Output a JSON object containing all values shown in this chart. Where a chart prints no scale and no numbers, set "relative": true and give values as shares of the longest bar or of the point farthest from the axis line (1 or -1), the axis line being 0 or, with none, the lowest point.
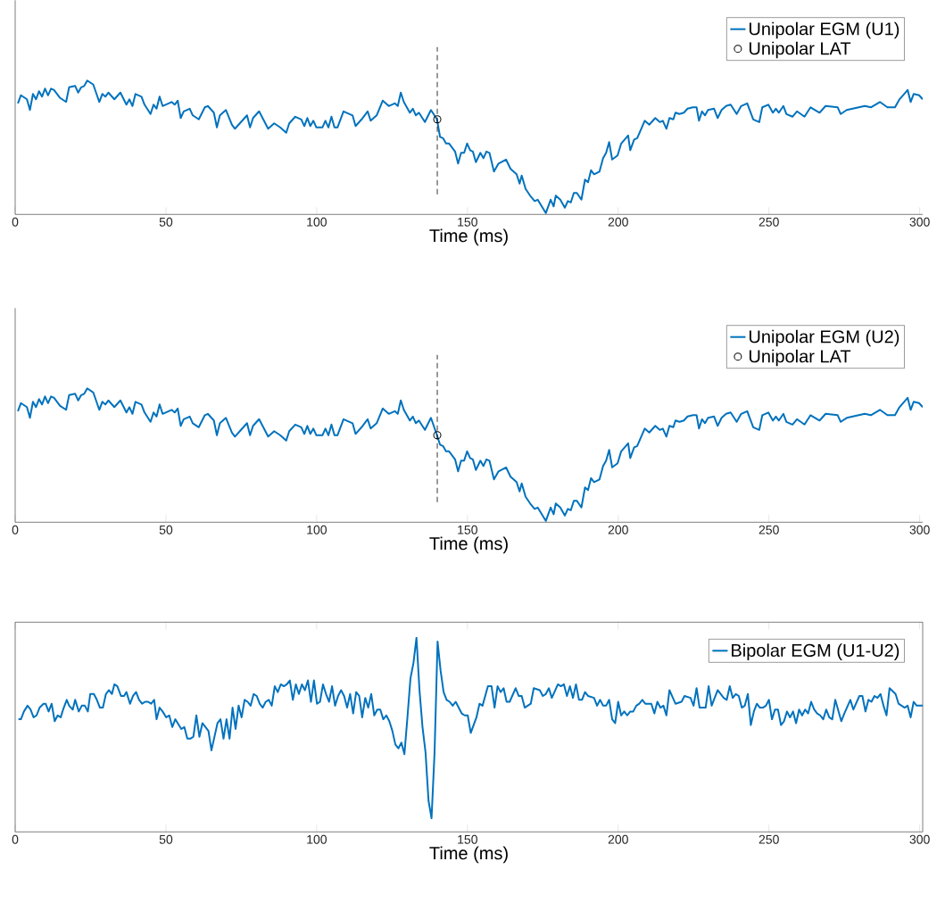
{
  "chart_data": [
    {
      "type": "line",
      "xlabel": "Time (ms)",
      "relative": true,
      "xlim": [
        0,
        301
      ],
      "xticks": [
        0,
        50,
        100,
        150,
        200,
        250,
        300
      ],
      "legend": "top right",
      "ref_lines": [
        {
          "axis": "x",
          "value": 140,
          "color": "#000000",
          "line_style": "dashed"
        }
      ],
      "series": [
        {
          "name": "Unipolar EGM (U1)",
          "color": "#0072bd",
          "x": [
            0.9,
            1.9,
            3.9,
            4.9,
            5.9,
            6.9,
            7.9,
            8.9,
            9.9,
            10.9,
            11.9,
            12.9,
            14.9,
            16.9,
            17.9,
            19.9,
            20.9,
            21.9,
            22.9,
            23.9,
            25.9,
            27.9,
            28.9,
            29.9,
            30.9,
            32.9,
            34.9,
            36.9,
            37.9,
            38.9,
            39.9,
            41.9,
            42.9,
            44.9,
            45.9,
            46.9,
            47.9,
            48.9,
            50.9,
            51.9,
            52.9,
            53.9,
            54.9,
            55.9,
            57.9,
            58.9,
            60.9,
            62.9,
            63.9,
            65.9,
            66.9,
            67.9,
            69.9,
            71.9,
            72.9,
            74.9,
            76.9,
            77.9,
            78.9,
            80.9,
            83.9,
            85.9,
            87.9,
            89.9,
            90.9,
            92.9,
            94.9,
            95.9,
            96.9,
            97.9,
            98.9,
            99.9,
            101.9,
            102.9,
            103.9,
            104.9,
            105.9,
            106.9,
            108.9,
            111.9,
            112.9,
            114.9,
            116.9,
            117.9,
            119.9,
            121.9,
            123.9,
            125.9,
            126.9,
            127.9,
            128.9,
            130.9,
            131.9,
            132.9,
            133.9,
            135.9,
            137.9,
            139.9,
            140.9,
            141.9,
            142.9,
            143.9,
            145.9,
            146.9,
            147.9,
            148.9,
            149.9,
            150.9,
            151.8,
            152.8,
            154.3,
            155.3,
            156.3,
            157.3,
            158.8,
            160.3,
            162.8,
            164.3,
            166.3,
            167.3,
            168.0,
            169.3,
            170.8,
            172.3,
            173.3,
            176.0,
            177.6,
            178.6,
            179.3,
            180.8,
            182.3,
            183.3,
            184.3,
            185.3,
            186.3,
            187.8,
            189.0,
            190.0,
            191.0,
            192.0,
            193.8,
            195.0,
            196.0,
            197.0,
            198.0,
            199.8,
            201.0,
            203.3,
            204.0,
            205.3,
            206.3,
            208.8,
            210.3,
            212.3,
            213.8,
            214.8,
            216.0,
            217.0,
            218.3,
            219.0,
            220.3,
            221.8,
            223.0,
            224.8,
            226.0,
            226.8,
            227.8,
            228.8,
            229.8,
            231.8,
            233.0,
            234.3,
            235.8,
            237.3,
            239.3,
            240.8,
            242.8,
            244.8,
            246.8,
            247.8,
            249.8,
            251.3,
            252.3,
            253.3,
            254.8,
            255.8,
            257.8,
            259.3,
            261.8,
            263.8,
            266.8,
            268.8,
            272.8,
            273.8,
            275.8,
            277.8,
            279.8,
            281.8,
            283.8,
            286.8,
            289.3,
            291.8,
            293.3,
            296.0,
            297.0,
            298.0,
            299.8,
            301.0
          ],
          "values": [
            0.83,
            0.89,
            0.86,
            0.78,
            0.9,
            0.86,
            0.92,
            0.88,
            0.94,
            0.89,
            0.94,
            0.93,
            0.87,
            0.84,
            0.95,
            0.96,
            0.91,
            0.95,
            0.96,
            1.0,
            0.97,
            0.84,
            0.9,
            0.88,
            0.91,
            0.86,
            0.91,
            0.82,
            0.86,
            0.81,
            0.9,
            0.88,
            0.82,
            0.75,
            0.82,
            0.79,
            0.88,
            0.81,
            0.83,
            0.84,
            0.82,
            0.85,
            0.72,
            0.77,
            0.79,
            0.74,
            0.71,
            0.8,
            0.81,
            0.76,
            0.65,
            0.74,
            0.78,
            0.67,
            0.64,
            0.69,
            0.74,
            0.65,
            0.72,
            0.77,
            0.64,
            0.68,
            0.65,
            0.61,
            0.68,
            0.73,
            0.71,
            0.66,
            0.72,
            0.66,
            0.7,
            0.65,
            0.65,
            0.7,
            0.65,
            0.73,
            0.65,
            0.65,
            0.77,
            0.74,
            0.66,
            0.71,
            0.77,
            0.7,
            0.74,
            0.85,
            0.81,
            0.83,
            0.81,
            0.91,
            0.84,
            0.76,
            0.79,
            0.74,
            0.76,
            0.69,
            0.78,
            0.71,
            0.58,
            0.57,
            0.53,
            0.53,
            0.47,
            0.38,
            0.46,
            0.46,
            0.53,
            0.48,
            0.47,
            0.39,
            0.46,
            0.42,
            0.47,
            0.46,
            0.32,
            0.38,
            0.41,
            0.34,
            0.3,
            0.23,
            0.29,
            0.19,
            0.14,
            0.1,
            0.11,
            0.01,
            0.11,
            0.06,
            0.14,
            0.11,
            0.05,
            0.1,
            0.09,
            0.16,
            0.16,
            0.11,
            0.26,
            0.24,
            0.33,
            0.3,
            0.32,
            0.42,
            0.46,
            0.54,
            0.41,
            0.44,
            0.53,
            0.59,
            0.48,
            0.56,
            0.57,
            0.7,
            0.67,
            0.72,
            0.69,
            0.7,
            0.64,
            0.72,
            0.71,
            0.76,
            0.75,
            0.76,
            0.79,
            0.8,
            0.8,
            0.7,
            0.77,
            0.74,
            0.78,
            0.79,
            0.72,
            0.78,
            0.81,
            0.82,
            0.75,
            0.81,
            0.83,
            0.71,
            0.69,
            0.8,
            0.82,
            0.76,
            0.79,
            0.76,
            0.81,
            0.75,
            0.73,
            0.77,
            0.73,
            0.8,
            0.76,
            0.81,
            0.8,
            0.75,
            0.78,
            0.79,
            0.8,
            0.81,
            0.8,
            0.84,
            0.8,
            0.8,
            0.86,
            0.93,
            0.84,
            0.9,
            0.89,
            0.86
          ]
        },
        {
          "name": "Unipolar LAT",
          "type": "scatter",
          "marker": "circle",
          "color": "#000000",
          "x": [
            140
          ],
          "values": [
            0.71
          ]
        }
      ]
    },
    {
      "type": "line",
      "xlabel": "Time (ms)",
      "relative": true,
      "xlim": [
        0,
        301
      ],
      "xticks": [
        0,
        50,
        100,
        150,
        200,
        250,
        300
      ],
      "legend": "top right",
      "ref_lines": [
        {
          "axis": "x",
          "value": 140,
          "color": "#000000",
          "line_style": "dashed"
        }
      ],
      "series": [
        {
          "name": "Unipolar EGM (U2)",
          "color": "#0072bd",
          "x": [
            0.9,
            1.9,
            3.9,
            4.9,
            5.9,
            6.9,
            7.9,
            8.9,
            9.9,
            10.9,
            11.9,
            12.9,
            14.9,
            16.9,
            17.9,
            19.9,
            20.9,
            21.9,
            22.9,
            23.9,
            25.9,
            27.9,
            28.9,
            29.9,
            30.9,
            32.9,
            34.9,
            36.9,
            37.9,
            38.9,
            39.9,
            41.9,
            42.9,
            44.9,
            45.9,
            46.9,
            47.9,
            48.9,
            50.9,
            51.9,
            52.9,
            53.9,
            54.9,
            55.9,
            57.9,
            58.9,
            60.9,
            62.9,
            63.9,
            65.9,
            66.9,
            67.9,
            69.9,
            71.9,
            72.9,
            74.9,
            76.9,
            77.9,
            78.9,
            80.9,
            83.9,
            85.9,
            87.9,
            89.9,
            90.9,
            92.9,
            94.9,
            95.9,
            96.9,
            97.9,
            98.9,
            99.9,
            101.9,
            102.9,
            103.9,
            104.9,
            105.9,
            106.9,
            108.9,
            111.9,
            112.9,
            114.9,
            116.9,
            117.9,
            119.9,
            121.9,
            123.9,
            125.9,
            126.9,
            127.9,
            128.9,
            130.9,
            131.9,
            132.9,
            133.9,
            135.9,
            137.9,
            139.9,
            140.9,
            141.9,
            142.9,
            143.9,
            145.9,
            146.9,
            147.9,
            148.9,
            149.9,
            150.9,
            151.8,
            152.8,
            154.3,
            155.3,
            156.3,
            157.3,
            158.8,
            160.3,
            162.8,
            164.3,
            166.3,
            167.3,
            168.0,
            169.3,
            170.8,
            172.3,
            173.3,
            176.0,
            177.6,
            178.6,
            179.3,
            180.8,
            182.3,
            183.3,
            184.3,
            185.3,
            186.3,
            187.8,
            189.0,
            190.0,
            191.0,
            192.0,
            193.8,
            195.0,
            196.0,
            197.0,
            198.0,
            199.8,
            201.0,
            203.3,
            204.0,
            205.3,
            206.3,
            208.8,
            210.3,
            212.3,
            213.8,
            214.8,
            216.0,
            217.0,
            218.3,
            219.0,
            220.3,
            221.8,
            223.0,
            224.8,
            226.0,
            226.8,
            227.8,
            228.8,
            229.8,
            231.8,
            233.0,
            234.3,
            235.8,
            237.3,
            239.3,
            240.8,
            242.8,
            244.8,
            246.8,
            247.8,
            249.8,
            251.3,
            252.3,
            253.3,
            254.8,
            255.8,
            257.8,
            259.3,
            261.8,
            263.8,
            266.8,
            268.8,
            272.8,
            273.8,
            275.8,
            277.8,
            279.8,
            281.8,
            283.8,
            286.8,
            289.3,
            291.8,
            293.3,
            296.0,
            297.0,
            298.0,
            299.8,
            301.0
          ],
          "values": [
            0.83,
            0.89,
            0.86,
            0.78,
            0.9,
            0.86,
            0.92,
            0.88,
            0.94,
            0.89,
            0.94,
            0.93,
            0.87,
            0.84,
            0.95,
            0.96,
            0.91,
            0.95,
            0.96,
            1.0,
            0.97,
            0.84,
            0.9,
            0.88,
            0.91,
            0.86,
            0.91,
            0.82,
            0.86,
            0.81,
            0.9,
            0.88,
            0.82,
            0.75,
            0.82,
            0.79,
            0.88,
            0.81,
            0.83,
            0.84,
            0.82,
            0.85,
            0.72,
            0.77,
            0.79,
            0.74,
            0.71,
            0.8,
            0.81,
            0.76,
            0.65,
            0.74,
            0.78,
            0.67,
            0.64,
            0.69,
            0.74,
            0.65,
            0.72,
            0.77,
            0.64,
            0.68,
            0.65,
            0.61,
            0.68,
            0.73,
            0.71,
            0.66,
            0.72,
            0.66,
            0.7,
            0.65,
            0.65,
            0.7,
            0.65,
            0.73,
            0.65,
            0.65,
            0.77,
            0.74,
            0.66,
            0.71,
            0.77,
            0.7,
            0.74,
            0.85,
            0.81,
            0.83,
            0.81,
            0.91,
            0.84,
            0.76,
            0.79,
            0.74,
            0.76,
            0.69,
            0.78,
            0.65,
            0.58,
            0.57,
            0.53,
            0.53,
            0.47,
            0.38,
            0.46,
            0.46,
            0.53,
            0.48,
            0.47,
            0.39,
            0.46,
            0.42,
            0.47,
            0.46,
            0.32,
            0.38,
            0.41,
            0.34,
            0.3,
            0.23,
            0.29,
            0.19,
            0.14,
            0.1,
            0.11,
            0.01,
            0.11,
            0.06,
            0.14,
            0.11,
            0.05,
            0.1,
            0.09,
            0.16,
            0.16,
            0.11,
            0.26,
            0.24,
            0.33,
            0.3,
            0.32,
            0.42,
            0.46,
            0.54,
            0.41,
            0.44,
            0.53,
            0.59,
            0.48,
            0.56,
            0.57,
            0.7,
            0.67,
            0.72,
            0.69,
            0.7,
            0.64,
            0.72,
            0.71,
            0.76,
            0.75,
            0.76,
            0.79,
            0.8,
            0.8,
            0.7,
            0.77,
            0.74,
            0.78,
            0.79,
            0.72,
            0.78,
            0.81,
            0.82,
            0.75,
            0.81,
            0.83,
            0.71,
            0.69,
            0.8,
            0.82,
            0.76,
            0.79,
            0.76,
            0.81,
            0.75,
            0.73,
            0.77,
            0.73,
            0.8,
            0.76,
            0.81,
            0.8,
            0.75,
            0.78,
            0.79,
            0.8,
            0.81,
            0.8,
            0.84,
            0.8,
            0.8,
            0.86,
            0.93,
            0.84,
            0.9,
            0.89,
            0.86
          ]
        },
        {
          "name": "Unipolar LAT",
          "type": "scatter",
          "marker": "circle",
          "color": "#000000",
          "x": [
            140
          ],
          "values": [
            0.65
          ]
        }
      ]
    },
    {
      "type": "line",
      "xlabel": "Time (ms)",
      "relative": true,
      "xlim": [
        0,
        301
      ],
      "xticks": [
        0,
        50,
        100,
        150,
        200,
        250,
        300
      ],
      "legend": "top right",
      "series": [
        {
          "name": "Bipolar EGM (U1-U2)",
          "color": "#0072bd",
          "x": [
            1.1,
            1.9,
            2.9,
            4.1,
            5.1,
            6.1,
            7.1,
            8.1,
            9.4,
            10.1,
            11.1,
            12.1,
            13.1,
            14.1,
            15.1,
            15.9,
            17.1,
            17.9,
            19.1,
            19.9,
            21.1,
            22.1,
            23.1,
            24.1,
            24.9,
            26.1,
            27.1,
            28.1,
            29.1,
            30.1,
            31.1,
            32.1,
            32.9,
            33.9,
            35.1,
            36.1,
            36.9,
            38.1,
            39.1,
            40.1,
            41.1,
            42.1,
            43.1,
            44.1,
            45.1,
            46.1,
            46.9,
            47.9,
            48.9,
            50.1,
            51.1,
            52.1,
            53.1,
            55.1,
            56.1,
            57.1,
            58.1,
            59.1,
            60.1,
            61.1,
            62.1,
            64.1,
            65.1,
            67.1,
            68.1,
            69.1,
            70.1,
            71.1,
            72.1,
            73.1,
            74.1,
            75.1,
            76.1,
            77.1,
            78.1,
            79.1,
            80.1,
            81.1,
            82.1,
            83.1,
            84.1,
            85.1,
            86.1,
            87.1,
            88.1,
            89.1,
            90.1,
            91.1,
            92.1,
            93.1,
            94.1,
            95.1,
            96.1,
            97.1,
            98.1,
            99.1,
            100.1,
            101.1,
            102.1,
            103.1,
            104.1,
            105.1,
            106.1,
            107.1,
            108.1,
            109.1,
            110.1,
            111.1,
            112.1,
            113.1,
            114.1,
            115.1,
            116.1,
            117.1,
            118.1,
            119.1,
            120.1,
            121.1,
            122.1,
            123.1,
            124.1,
            125.1,
            126.1,
            127.1,
            128.1,
            129.1,
            130.1,
            131.1,
            132.1,
            133.1,
            134.1,
            135.1,
            136.1,
            137.1,
            138.1,
            139.1,
            140.1,
            141.1,
            142.1,
            143.1,
            144.1,
            145.1,
            146.1,
            147.1,
            148.1,
            149.1,
            150.1,
            151.1,
            153.0,
            154.0,
            155.0,
            156.8,
            158.0,
            159.0,
            160.0,
            161.0,
            162.0,
            163.0,
            164.0,
            166.0,
            167.0,
            168.0,
            169.0,
            171.0,
            172.0,
            174.0,
            175.0,
            176.0,
            177.0,
            178.0,
            180.0,
            181.0,
            182.0,
            183.0,
            184.0,
            185.0,
            186.0,
            187.0,
            188.0,
            189.0,
            190.0,
            192.0,
            193.0,
            194.0,
            195.0,
            196.0,
            197.0,
            198.0,
            199.0,
            200.0,
            201.0,
            202.0,
            203.0,
            204.0,
            205.0,
            206.0,
            207.0,
            208.0,
            209.0,
            211.0,
            212.0,
            213.0,
            214.0,
            215.0,
            216.0,
            217.0,
            219.0,
            221.0,
            222.0,
            224.0,
            225.0,
            226.0,
            227.0,
            229.0,
            230.0,
            231.0,
            233.0,
            235.0,
            236.0,
            237.0,
            238.0,
            239.0,
            240.0,
            241.0,
            242.0,
            243.0,
            244.0,
            245.0,
            246.0,
            247.0,
            248.0,
            249.0,
            250.0,
            251.0,
            252.0,
            253.0,
            254.0,
            255.0,
            256.0,
            257.0,
            258.0,
            259.0,
            260.0,
            261.0,
            262.0,
            263.0,
            264.0,
            265.0,
            266.0,
            267.0,
            268.0,
            269.0,
            270.0,
            271.0,
            272.0,
            274.0,
            275.0,
            277.0,
            278.0,
            280.0,
            281.0,
            282.0,
            283.0,
            284.0,
            285.0,
            286.0,
            287.0,
            288.0,
            289.0,
            290.0,
            292.0,
            293.0,
            295.0,
            296.0,
            297.0,
            298.0,
            299.0,
            301.0
          ],
          "values": [
            0.58,
            0.58,
            0.62,
            0.65,
            0.63,
            0.59,
            0.6,
            0.64,
            0.66,
            0.66,
            0.62,
            0.66,
            0.57,
            0.6,
            0.59,
            0.63,
            0.68,
            0.65,
            0.63,
            0.68,
            0.62,
            0.65,
            0.65,
            0.62,
            0.71,
            0.71,
            0.68,
            0.64,
            0.64,
            0.71,
            0.73,
            0.71,
            0.76,
            0.75,
            0.7,
            0.7,
            0.72,
            0.66,
            0.7,
            0.72,
            0.68,
            0.66,
            0.67,
            0.67,
            0.66,
            0.68,
            0.58,
            0.64,
            0.62,
            0.59,
            0.6,
            0.54,
            0.58,
            0.53,
            0.54,
            0.48,
            0.48,
            0.49,
            0.6,
            0.49,
            0.56,
            0.52,
            0.42,
            0.56,
            0.58,
            0.48,
            0.58,
            0.48,
            0.64,
            0.53,
            0.65,
            0.59,
            0.68,
            0.67,
            0.65,
            0.71,
            0.7,
            0.66,
            0.64,
            0.67,
            0.68,
            0.65,
            0.75,
            0.72,
            0.76,
            0.75,
            0.76,
            0.78,
            0.68,
            0.76,
            0.71,
            0.76,
            0.73,
            0.78,
            0.67,
            0.78,
            0.66,
            0.67,
            0.76,
            0.71,
            0.67,
            0.75,
            0.65,
            0.7,
            0.73,
            0.7,
            0.64,
            0.71,
            0.61,
            0.72,
            0.7,
            0.59,
            0.69,
            0.64,
            0.71,
            0.6,
            0.63,
            0.63,
            0.58,
            0.6,
            0.57,
            0.52,
            0.45,
            0.43,
            0.46,
            0.4,
            0.59,
            0.79,
            0.87,
            1.0,
            0.73,
            0.54,
            0.41,
            0.16,
            0.07,
            0.41,
            0.98,
            0.83,
            0.72,
            0.68,
            0.67,
            0.65,
            0.67,
            0.64,
            0.61,
            0.6,
            0.6,
            0.51,
            0.59,
            0.66,
            0.65,
            0.75,
            0.75,
            0.64,
            0.75,
            0.72,
            0.74,
            0.67,
            0.67,
            0.74,
            0.7,
            0.7,
            0.64,
            0.66,
            0.74,
            0.73,
            0.7,
            0.71,
            0.74,
            0.69,
            0.76,
            0.75,
            0.76,
            0.7,
            0.75,
            0.69,
            0.76,
            0.68,
            0.68,
            0.72,
            0.7,
            0.69,
            0.65,
            0.68,
            0.65,
            0.65,
            0.68,
            0.58,
            0.56,
            0.67,
            0.6,
            0.62,
            0.6,
            0.62,
            0.62,
            0.65,
            0.66,
            0.68,
            0.66,
            0.66,
            0.61,
            0.67,
            0.64,
            0.65,
            0.6,
            0.73,
            0.66,
            0.67,
            0.7,
            0.69,
            0.65,
            0.74,
            0.64,
            0.64,
            0.75,
            0.65,
            0.73,
            0.69,
            0.68,
            0.75,
            0.69,
            0.71,
            0.7,
            0.64,
            0.65,
            0.71,
            0.55,
            0.62,
            0.66,
            0.64,
            0.64,
            0.65,
            0.68,
            0.58,
            0.63,
            0.63,
            0.55,
            0.57,
            0.62,
            0.59,
            0.62,
            0.56,
            0.63,
            0.6,
            0.63,
            0.61,
            0.67,
            0.63,
            0.61,
            0.6,
            0.58,
            0.63,
            0.59,
            0.58,
            0.68,
            0.57,
            0.61,
            0.68,
            0.63,
            0.7,
            0.7,
            0.62,
            0.68,
            0.67,
            0.7,
            0.69,
            0.71,
            0.65,
            0.6,
            0.74,
            0.71,
            0.66,
            0.64,
            0.65,
            0.59,
            0.67,
            0.65,
            0.65
          ]
        }
      ]
    }
  ]
}
